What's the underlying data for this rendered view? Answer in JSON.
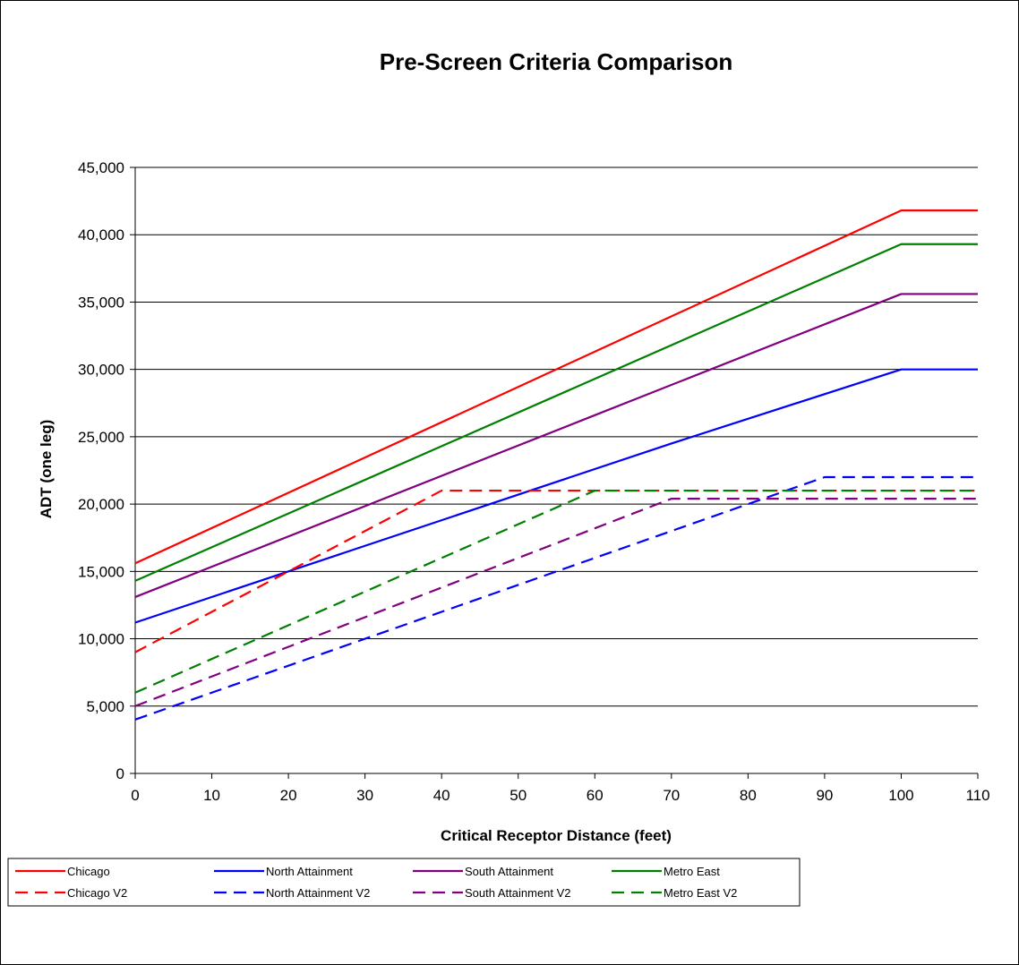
{
  "chart_data": {
    "type": "line",
    "title": "Pre-Screen Criteria Comparison",
    "xlabel": "Critical Receptor Distance (feet)",
    "ylabel": "ADT (one leg)",
    "xlim": [
      0,
      110
    ],
    "ylim": [
      0,
      45000
    ],
    "x_ticks": [
      0,
      10,
      20,
      30,
      40,
      50,
      60,
      70,
      80,
      90,
      100,
      110
    ],
    "y_ticks": [
      0,
      5000,
      10000,
      15000,
      20000,
      25000,
      30000,
      35000,
      40000,
      45000
    ],
    "x_tick_labels": [
      "0",
      "10",
      "20",
      "30",
      "40",
      "50",
      "60",
      "70",
      "80",
      "90",
      "100",
      "110"
    ],
    "y_tick_labels": [
      "0",
      "5,000",
      "10,000",
      "15,000",
      "20,000",
      "25,000",
      "30,000",
      "35,000",
      "40,000",
      "45,000"
    ],
    "grid": "horizontal",
    "legend_position": "bottom",
    "series": [
      {
        "name": "Chicago",
        "color": "#ff0000",
        "dash": "solid",
        "x": [
          0,
          100,
          110
        ],
        "y": [
          15600,
          41800,
          41800
        ]
      },
      {
        "name": "North Attainment",
        "color": "#0000ff",
        "dash": "solid",
        "x": [
          0,
          70,
          100,
          110
        ],
        "y": [
          11200,
          24500,
          30000,
          30000
        ]
      },
      {
        "name": "South Attainment",
        "color": "#800080",
        "dash": "solid",
        "x": [
          0,
          60,
          100,
          110
        ],
        "y": [
          13100,
          26600,
          35600,
          35600
        ]
      },
      {
        "name": "Metro East",
        "color": "#008000",
        "dash": "solid",
        "x": [
          0,
          100,
          110
        ],
        "y": [
          14300,
          39300,
          39300
        ]
      },
      {
        "name": "Chicago V2",
        "color": "#ff0000",
        "dash": "dashed",
        "x": [
          0,
          40,
          110
        ],
        "y": [
          9000,
          21000,
          21000
        ]
      },
      {
        "name": "North Attainment V2",
        "color": "#0000ff",
        "dash": "dashed",
        "x": [
          0,
          60,
          90,
          110
        ],
        "y": [
          4000,
          16000,
          22000,
          22000
        ]
      },
      {
        "name": "South Attainment V2",
        "color": "#800080",
        "dash": "dashed",
        "x": [
          0,
          70,
          110
        ],
        "y": [
          5000,
          20400,
          20400
        ]
      },
      {
        "name": "Metro East V2",
        "color": "#008000",
        "dash": "dashed",
        "x": [
          0,
          60,
          110
        ],
        "y": [
          6000,
          21000,
          21000
        ]
      }
    ]
  }
}
